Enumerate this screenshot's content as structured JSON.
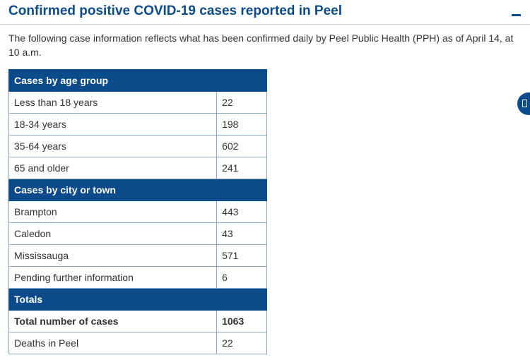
{
  "header": {
    "title": "Confirmed positive COVID-19 cases reported in Peel",
    "collapse_icon": "minus-icon"
  },
  "intro": "The following case information reflects what has been confirmed daily by Peel Public Health (PPH) as of April 14, at 10 a.m.",
  "table": {
    "age_header": "Cases by age group",
    "age_rows": [
      {
        "label": "Less than 18 years",
        "value": "22"
      },
      {
        "label": "18-34 years",
        "value": "198"
      },
      {
        "label": "35-64 years",
        "value": "602"
      },
      {
        "label": "65 and older",
        "value": "241"
      }
    ],
    "city_header": "Cases by city or town",
    "city_rows": [
      {
        "label": "Brampton",
        "value": "443"
      },
      {
        "label": "Caledon",
        "value": "43"
      },
      {
        "label": "Mississauga",
        "value": "571"
      },
      {
        "label": "Pending further information",
        "value": "6"
      }
    ],
    "totals_header": "Totals",
    "totals_rows": [
      {
        "label": "Total number of cases",
        "value": "1063"
      },
      {
        "label": "Deaths in Peel",
        "value": "22"
      }
    ]
  },
  "side_widget": {
    "icon": "feedback-icon"
  },
  "colors": {
    "accent": "#0b4a8b",
    "border": "#8fa9c6",
    "text": "#333333"
  }
}
